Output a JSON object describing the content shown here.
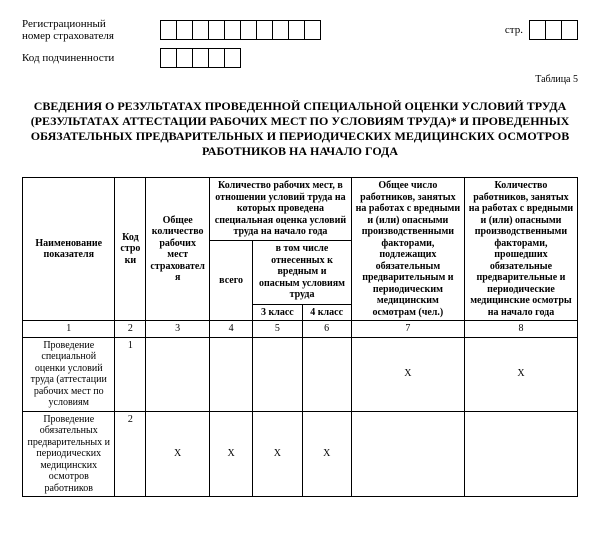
{
  "header": {
    "reg_label_line1": "Регистрационный",
    "reg_label_line2": "номер страхователя",
    "sub_label": "Код подчиненности",
    "page_label": "стр.",
    "table_label": "Таблица 5"
  },
  "title": {
    "l1": "СВЕДЕНИЯ О РЕЗУЛЬТАТАХ ПРОВЕДЕННОЙ СПЕЦИАЛЬНОЙ ОЦЕНКИ УСЛОВИЙ ТРУДА",
    "l2": "(РЕЗУЛЬТАТАХ АТТЕСТАЦИИ РАБОЧИХ МЕСТ ПО УСЛОВИЯМ ТРУДА)* И ПРОВЕДЕННЫХ",
    "l3": "ОБЯЗАТЕЛЬНЫХ ПРЕДВАРИТЕЛЬНЫХ И ПЕРИОДИЧЕСКИХ МЕДИЦИНСКИХ ОСМОТРОВ",
    "l4": "РАБОТНИКОВ НА НАЧАЛО ГОДА"
  },
  "cols": {
    "c1": "Наименование показателя",
    "c2": "Код строки",
    "c3": "Общее количество рабочих мест страхователя",
    "group4": "Количество рабочих мест, в отношении условий труда на которых проведена специальная оценка условий труда на начало года",
    "c4": "всего",
    "group56": "в том числе отнесенных к вредным и опасным условиям труда",
    "c5": "3 класс",
    "c6": "4 класс",
    "c7": "Общее число работников, занятых на работах с вредными и (или) опасными производственными факторами, подлежащих обязательным предварительным и периодическим медицинским осмотрам (чел.)",
    "c8": "Количество работников, занятых на работах с вредными и (или) опасными производственными факторами, прошедших обязательные предварительные и периодические медицинские осмотры на начало года"
  },
  "numrow": {
    "n1": "1",
    "n2": "2",
    "n3": "3",
    "n4": "4",
    "n5": "5",
    "n6": "6",
    "n7": "7",
    "n8": "8"
  },
  "rows": [
    {
      "name": "Проведение специальной оценки условий труда (аттестации рабочих мест по условиям",
      "code": "1",
      "v3": "",
      "v4": "",
      "v5": "",
      "v6": "",
      "v7": "X",
      "v8": "X"
    },
    {
      "name": "Проведение обязательных предварительных и периодических медицинских осмотров работников",
      "code": "2",
      "v3": "X",
      "v4": "X",
      "v5": "X",
      "v6": "X",
      "v7": "",
      "v8": ""
    }
  ],
  "box_counts": {
    "reg": 10,
    "sub": 5,
    "page": 3
  }
}
